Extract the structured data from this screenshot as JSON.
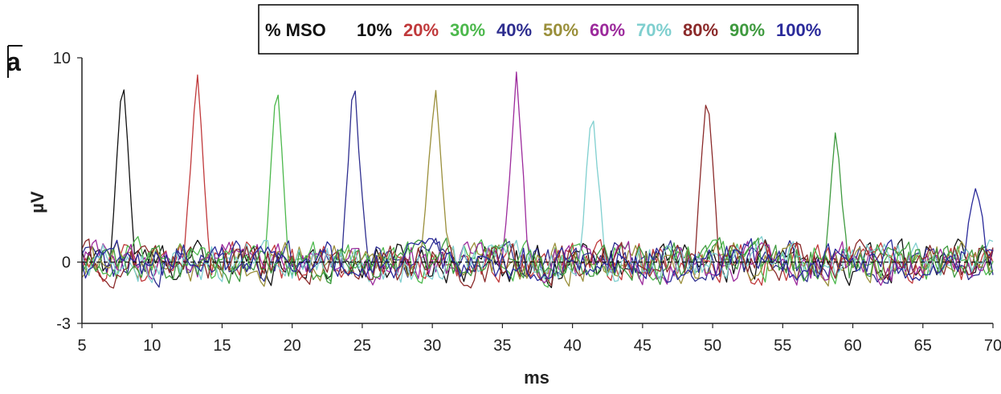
{
  "chart_data": {
    "type": "line",
    "panel_label": "a",
    "xlabel": "ms",
    "ylabel": "µV",
    "xlim": [
      5,
      70
    ],
    "ylim": [
      -3,
      10
    ],
    "x_ticks": [
      5,
      10,
      15,
      20,
      25,
      30,
      35,
      40,
      45,
      50,
      55,
      60,
      65,
      70
    ],
    "y_ticks": [
      -3,
      0,
      10
    ],
    "baseline": 0,
    "grid": false,
    "legend": {
      "title": "% MSO",
      "placement": "top-center"
    },
    "series": [
      {
        "name": "10%",
        "color": "#111111",
        "peak_ms": 7.9,
        "peak_uV": 9.5
      },
      {
        "name": "20%",
        "color": "#c0393b",
        "peak_ms": 13.2,
        "peak_uV": 9.7
      },
      {
        "name": "30%",
        "color": "#4cb84c",
        "peak_ms": 18.9,
        "peak_uV": 9.3
      },
      {
        "name": "40%",
        "color": "#2e2e8f",
        "peak_ms": 24.4,
        "peak_uV": 9.5
      },
      {
        "name": "50%",
        "color": "#9a8f3a",
        "peak_ms": 30.2,
        "peak_uV": 8.9
      },
      {
        "name": "60%",
        "color": "#9c2a9c",
        "peak_ms": 36.0,
        "peak_uV": 9.3
      },
      {
        "name": "70%",
        "color": "#7fcfcf",
        "peak_ms": 41.4,
        "peak_uV": 7.7
      },
      {
        "name": "80%",
        "color": "#8b2a2a",
        "peak_ms": 49.6,
        "peak_uV": 8.5
      },
      {
        "name": "90%",
        "color": "#3f9a3f",
        "peak_ms": 58.8,
        "peak_uV": 6.7
      },
      {
        "name": "100%",
        "color": "#2a2a9a",
        "peak_ms": 68.8,
        "peak_uV": 3.8
      }
    ]
  }
}
